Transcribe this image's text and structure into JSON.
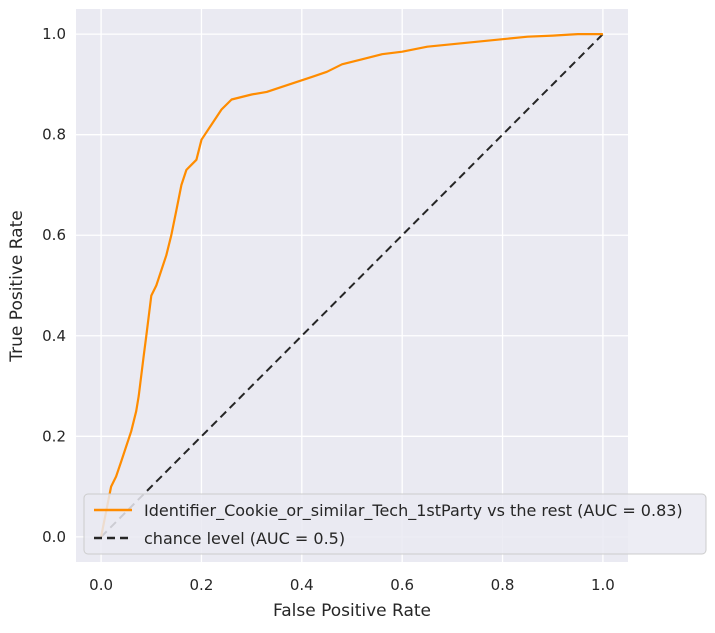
{
  "chart_data": {
    "type": "line",
    "title": "",
    "xlabel": "False Positive Rate",
    "ylabel": "True Positive Rate",
    "xlim": [
      -0.05,
      1.05
    ],
    "ylim": [
      -0.05,
      1.05
    ],
    "xticks": [
      0.0,
      0.2,
      0.4,
      0.6,
      0.8,
      1.0
    ],
    "yticks": [
      0.0,
      0.2,
      0.4,
      0.6,
      0.8,
      1.0
    ],
    "xtick_labels": [
      "0.0",
      "0.2",
      "0.4",
      "0.6",
      "0.8",
      "1.0"
    ],
    "ytick_labels": [
      "0.0",
      "0.2",
      "0.4",
      "0.6",
      "0.8",
      "1.0"
    ],
    "grid": true,
    "legend_position": "lower-right",
    "series": [
      {
        "name": "Identifier_Cookie_or_similar_Tech_1stParty vs the rest (AUC = 0.83)",
        "color": "#ff8c00",
        "style": "solid",
        "x": [
          0.0,
          0.01,
          0.02,
          0.03,
          0.04,
          0.05,
          0.06,
          0.07,
          0.075,
          0.08,
          0.085,
          0.09,
          0.095,
          0.1,
          0.11,
          0.12,
          0.13,
          0.14,
          0.15,
          0.16,
          0.17,
          0.18,
          0.19,
          0.2,
          0.22,
          0.24,
          0.26,
          0.28,
          0.3,
          0.33,
          0.36,
          0.39,
          0.42,
          0.45,
          0.48,
          0.52,
          0.56,
          0.6,
          0.65,
          0.7,
          0.75,
          0.8,
          0.85,
          0.9,
          0.95,
          1.0
        ],
        "y": [
          0.0,
          0.05,
          0.1,
          0.12,
          0.15,
          0.18,
          0.21,
          0.25,
          0.28,
          0.32,
          0.36,
          0.4,
          0.44,
          0.48,
          0.5,
          0.53,
          0.56,
          0.6,
          0.65,
          0.7,
          0.73,
          0.74,
          0.75,
          0.79,
          0.82,
          0.85,
          0.87,
          0.875,
          0.88,
          0.885,
          0.895,
          0.905,
          0.915,
          0.925,
          0.94,
          0.95,
          0.96,
          0.965,
          0.975,
          0.98,
          0.985,
          0.99,
          0.995,
          0.997,
          1.0,
          1.0
        ]
      },
      {
        "name": "chance level (AUC = 0.5)",
        "color": "#262626",
        "style": "dashed",
        "x": [
          0.0,
          1.0
        ],
        "y": [
          0.0,
          1.0
        ]
      }
    ]
  }
}
